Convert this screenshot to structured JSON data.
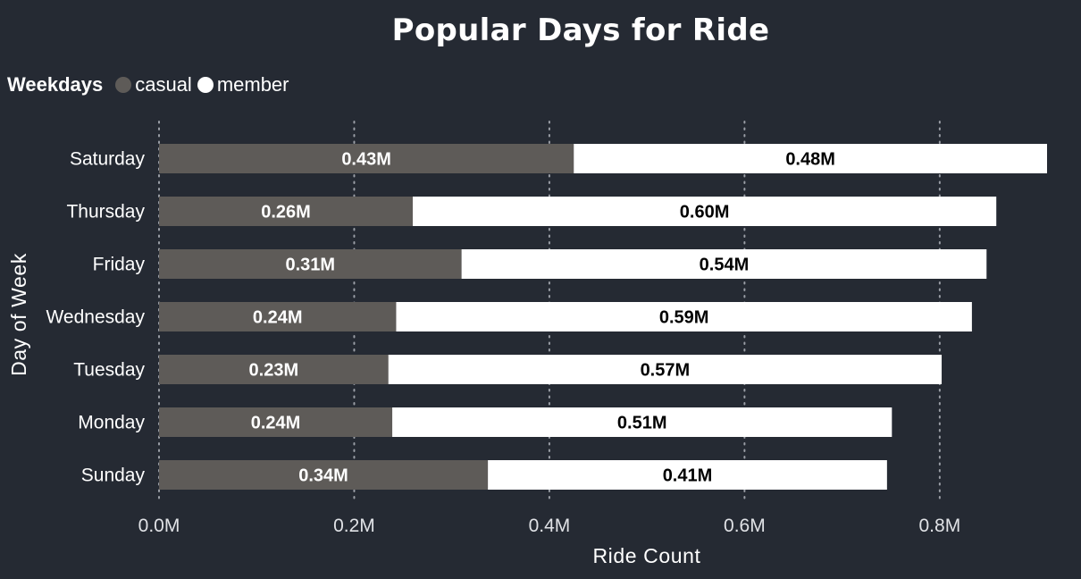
{
  "chart_data": {
    "type": "bar",
    "orientation": "horizontal",
    "stacked": true,
    "title": "Popular Days for Ride",
    "xlabel": "Ride Count",
    "ylabel": "Day of Week",
    "legend_title": "Weekdays",
    "legend_position": "top-left",
    "grid": "vertical dotted",
    "xlim": [
      0,
      0.91
    ],
    "x_unit": "M",
    "x_ticks": [
      "0.0M",
      "0.2M",
      "0.4M",
      "0.6M",
      "0.8M"
    ],
    "x_tick_values": [
      0,
      0.2,
      0.4,
      0.6,
      0.8
    ],
    "categories": [
      "Saturday",
      "Thursday",
      "Friday",
      "Wednesday",
      "Tuesday",
      "Monday",
      "Sunday"
    ],
    "series": [
      {
        "name": "casual",
        "color": "#5E5B58",
        "label_color": "#FFFFFF",
        "values": [
          0.425,
          0.26,
          0.31,
          0.243,
          0.235,
          0.239,
          0.337
        ],
        "labels": [
          "0.43M",
          "0.26M",
          "0.31M",
          "0.24M",
          "0.23M",
          "0.24M",
          "0.34M"
        ]
      },
      {
        "name": "member",
        "color": "#FFFFFF",
        "label_color": "#000000",
        "values": [
          0.485,
          0.598,
          0.538,
          0.59,
          0.567,
          0.512,
          0.409
        ],
        "labels": [
          "0.48M",
          "0.60M",
          "0.54M",
          "0.59M",
          "0.57M",
          "0.51M",
          "0.41M"
        ]
      }
    ]
  },
  "colors": {
    "background": "#252A33",
    "text": "#FFFFFF",
    "grid": "#9A9EA6"
  }
}
